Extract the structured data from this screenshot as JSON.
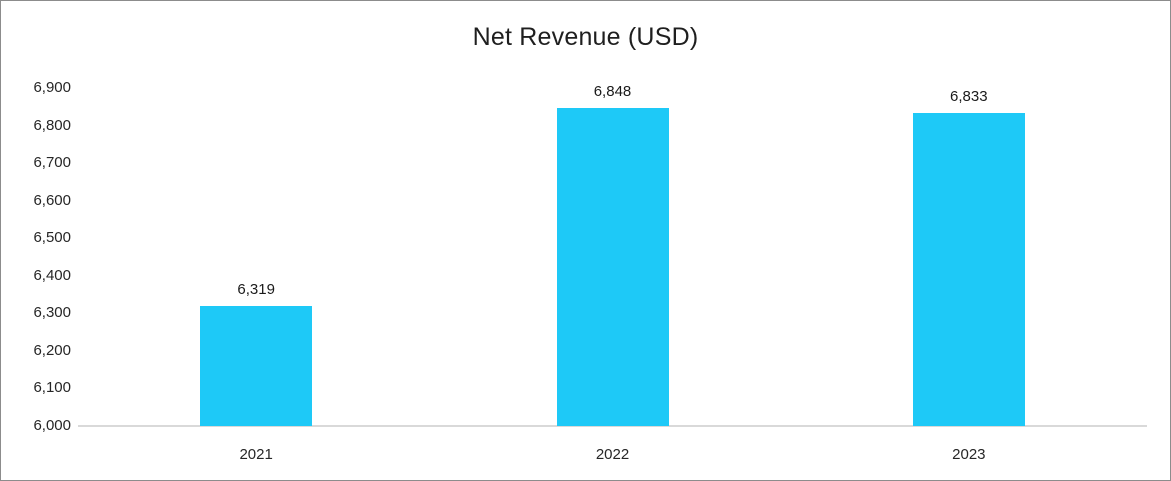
{
  "chart_data": {
    "type": "bar",
    "title": "Net Revenue (USD)",
    "categories": [
      "2021",
      "2022",
      "2023"
    ],
    "values": [
      6319,
      6848,
      6833
    ],
    "value_labels": [
      "6,319",
      "6,848",
      "6,833"
    ],
    "y_tick_values": [
      6000,
      6100,
      6200,
      6300,
      6400,
      6500,
      6600,
      6700,
      6800,
      6900
    ],
    "y_tick_labels": [
      "6,000",
      "6,100",
      "6,200",
      "6,300",
      "6,400",
      "6,500",
      "6,600",
      "6,700",
      "6,800",
      "6,900"
    ],
    "ylim": [
      6000,
      6900
    ],
    "xlabel": "",
    "ylabel": "",
    "grid": false,
    "legend": "none",
    "bar_color": "#1ec9f7",
    "axis_line_color": "#d9d9d9",
    "text_color": "#262626"
  }
}
